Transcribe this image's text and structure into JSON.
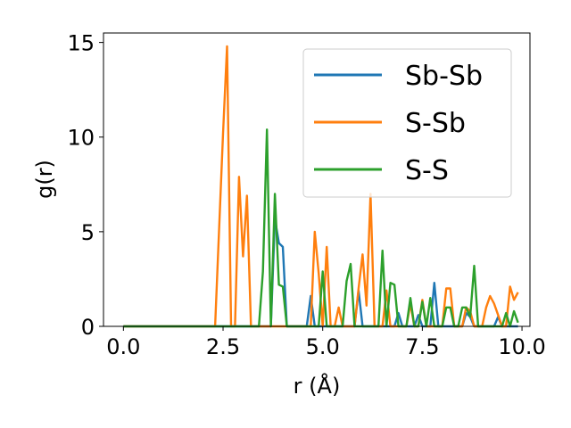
{
  "chart_data": {
    "type": "line",
    "xlabel": "r (Å)",
    "ylabel": "g(r)",
    "xlim": [
      -0.5,
      10.2
    ],
    "ylim": [
      0,
      15.5
    ],
    "xticks": [
      0.0,
      2.5,
      5.0,
      7.5,
      10.0
    ],
    "xtick_labels": [
      "0.0",
      "2.5",
      "5.0",
      "7.5",
      "10.0"
    ],
    "yticks": [
      0,
      5,
      10,
      15
    ],
    "ytick_labels": [
      "0",
      "5",
      "10",
      "15"
    ],
    "grid": false,
    "legend_position": "top-right",
    "series": [
      {
        "name": "Sb-Sb",
        "color": "#1f77b4",
        "x": [
          0.0,
          3.7,
          3.8,
          3.9,
          4.0,
          4.1,
          4.2,
          4.3,
          4.6,
          4.7,
          4.8,
          5.8,
          5.9,
          6.0,
          6.1,
          6.8,
          6.9,
          7.0,
          7.3,
          7.4,
          7.5,
          7.7,
          7.8,
          7.9,
          8.5,
          8.6,
          8.7,
          8.8,
          9.3,
          9.4,
          9.5,
          9.9
        ],
        "y": [
          0.0,
          0.0,
          5.7,
          4.4,
          4.2,
          0.0,
          0.0,
          0.0,
          0.0,
          1.6,
          0.0,
          0.0,
          1.9,
          0.0,
          0.0,
          0.0,
          0.7,
          0.0,
          0.0,
          0.6,
          0.0,
          0.0,
          2.3,
          0.0,
          0.0,
          0.7,
          0.5,
          0.0,
          0.0,
          0.5,
          0.0,
          0.0
        ]
      },
      {
        "name": "S-Sb",
        "color": "#ff7f0e",
        "x": [
          0.0,
          2.3,
          2.5,
          2.6,
          2.7,
          2.8,
          2.9,
          3.0,
          3.1,
          3.2,
          3.3,
          4.7,
          4.8,
          4.9,
          5.0,
          5.1,
          5.2,
          5.3,
          5.4,
          5.5,
          5.7,
          5.8,
          5.9,
          6.0,
          6.1,
          6.2,
          6.3,
          6.4,
          6.5,
          6.6,
          6.7,
          6.8,
          6.9,
          7.0,
          7.1,
          7.2,
          7.3,
          7.4,
          7.5,
          7.6,
          7.7,
          7.8,
          7.9,
          8.0,
          8.1,
          8.2,
          8.3,
          8.4,
          8.5,
          8.6,
          8.7,
          8.8,
          8.9,
          9.0,
          9.1,
          9.2,
          9.3,
          9.4,
          9.5,
          9.6,
          9.7,
          9.8,
          9.9
        ],
        "y": [
          0.0,
          0.0,
          10.2,
          14.8,
          0.0,
          0.0,
          7.9,
          3.7,
          6.9,
          0.0,
          0.0,
          0.0,
          5.0,
          2.8,
          0.0,
          4.2,
          0.0,
          0.0,
          1.0,
          0.0,
          0.0,
          0.0,
          2.0,
          3.8,
          1.1,
          7.0,
          0.0,
          0.0,
          0.0,
          1.9,
          0.0,
          0.0,
          0.0,
          0.0,
          0.0,
          1.2,
          0.0,
          0.0,
          1.4,
          0.0,
          0.0,
          0.0,
          0.0,
          0.0,
          2.0,
          2.0,
          0.0,
          0.0,
          0.0,
          1.0,
          0.8,
          0.0,
          0.0,
          0.0,
          1.0,
          1.6,
          1.2,
          0.6,
          0.0,
          0.0,
          2.1,
          1.4,
          1.8
        ]
      },
      {
        "name": "S-S",
        "color": "#2ca02c",
        "x": [
          0.0,
          3.3,
          3.4,
          3.5,
          3.6,
          3.7,
          3.8,
          3.9,
          4.0,
          4.1,
          4.2,
          4.3,
          4.4,
          4.9,
          5.0,
          5.1,
          5.5,
          5.6,
          5.7,
          5.8,
          6.3,
          6.4,
          6.5,
          6.6,
          6.7,
          6.8,
          6.9,
          7.0,
          7.1,
          7.2,
          7.3,
          7.4,
          7.5,
          7.6,
          7.7,
          7.8,
          7.9,
          8.0,
          8.1,
          8.2,
          8.3,
          8.4,
          8.5,
          8.6,
          8.7,
          8.8,
          8.9,
          9.0,
          9.1,
          9.2,
          9.3,
          9.4,
          9.5,
          9.6,
          9.7,
          9.8,
          9.9
        ],
        "y": [
          0.0,
          0.0,
          0.0,
          2.9,
          10.4,
          0.0,
          7.0,
          2.2,
          2.1,
          0.0,
          0.0,
          0.0,
          0.0,
          0.0,
          2.9,
          0.0,
          0.0,
          2.4,
          3.3,
          0.0,
          0.0,
          0.0,
          4.0,
          0.0,
          2.3,
          2.2,
          0.0,
          0.0,
          0.0,
          1.5,
          0.0,
          0.0,
          1.3,
          0.0,
          1.5,
          0.0,
          0.0,
          0.0,
          1.0,
          1.0,
          0.0,
          0.0,
          1.0,
          1.0,
          0.5,
          3.2,
          0.0,
          0.0,
          0.0,
          0.0,
          0.0,
          0.0,
          0.0,
          0.7,
          0.0,
          0.8,
          0.2
        ]
      }
    ]
  }
}
